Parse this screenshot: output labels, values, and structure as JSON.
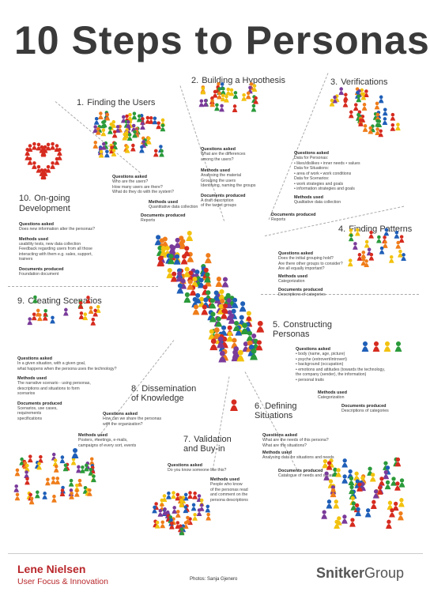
{
  "title": "10 Steps to Personas",
  "colors": {
    "red": "#d62b1f",
    "blue": "#1f5fb8",
    "green": "#2a9a3a",
    "yellow": "#f2c20f",
    "orange": "#ef7d1a",
    "purple": "#7a3b9a",
    "brand_red": "#b8262a"
  },
  "steps": [
    {
      "num": "1.",
      "name": "Finding the Users",
      "q_h": "Questions asked",
      "q": "Who are the users?\nHow many users are there?\nWhat do they do with the system?",
      "m_h": "Methods used",
      "m": "Quantitative data collection",
      "d_h": "Documents produced",
      "d": "Reports"
    },
    {
      "num": "2.",
      "name": "Building a Hypothesis",
      "q_h": "Questions asked",
      "q": "What are the differences\namong the users?",
      "m_h": "Methods used",
      "m": "Analysing the material\nGrouping the users\nIdentifying, naming the groups",
      "d_h": "Documents produced",
      "d": "A draft description\nof the target groups"
    },
    {
      "num": "3.",
      "name": "Verifications",
      "q_h": "Questions asked",
      "q": "Data for Personas:\n• likes/dislikes • inner needs • values\nData for Situations:\n• area of work • work conditions\nData for Scenarios:\n• work strategies and goals\n• information strategies and goals",
      "m_h": "Methods used",
      "m": "Qualitative data collection",
      "d_h": "Documents produced",
      "d": "Reports"
    },
    {
      "num": "4.",
      "name": "Finding Patterns",
      "q_h": "Questions asked",
      "q": "Does the initial grouping hold?\nAre there other groups to consider?\nAre all equally important?",
      "m_h": "Methods used",
      "m": "Categorization",
      "d_h": "Documents produced",
      "d": "Descriptions of categories"
    },
    {
      "num": "5.",
      "name": "Constructing\nPersonas",
      "q_h": "Questions asked",
      "q": "• body (name, age, picture)\n• psyche (extrovert/introvert)\n• background (occupation)\n• emotions and attitudes (towards the technology,\n   the company (sender), the information)\n• personal traits",
      "m_h": "Methods used",
      "m": "Categorization",
      "d_h": "Documents produced",
      "d": "Descriptions of categories"
    },
    {
      "num": "6.",
      "name": "Defining\nSituations",
      "q_h": "Questions asked",
      "q": "What are the needs of this persona?\nWhat are the situations?",
      "m_h": "Methods used",
      "m": "Analysing data for situations and needs",
      "d_h": "Documents produced",
      "d": "Catalogue of needs and situations"
    },
    {
      "num": "7.",
      "name": "Validation\nand Buy-in",
      "q_h": "Questions asked",
      "q": "Do you know someone like this?",
      "m_h": "Methods used",
      "m": "People who know\nof the personas read\nand comment on the\npersona descriptions",
      "d_h": "",
      "d": ""
    },
    {
      "num": "8.",
      "name": "Dissemination\nof Knowledge",
      "q_h": "Questions asked",
      "q": "How can we share the personas\nwith the organization?",
      "m_h": "Methods used",
      "m": "Posters, meetings, e-mails,\ncampaigns of every sort, events",
      "d_h": "",
      "d": ""
    },
    {
      "num": "9.",
      "name": "Creating Scenarios",
      "q_h": "Questions asked",
      "q": "In a given situation, with a given goal,\nwhat happens when the persona  uses the technology?",
      "m_h": "Methods used",
      "m": "The narrative scenario - using personas,\ndescriptions and situations to form\nscenarios",
      "d_h": "Documents produced",
      "d": "Scenarios, use cases,\nrequirements\nspecifications"
    },
    {
      "num": "10.",
      "name": "On-going\nDevelopment",
      "q_h": "Questions asked",
      "q": "Does new information alter the personas?",
      "m_h": "Methods used",
      "m": "usability tests, new data collection\nFeedback regarding users from all those\ninteracting with them e.g. sales, support,\ntrainers",
      "d_h": "Documents produced",
      "d": "Foundation document"
    }
  ],
  "footer": {
    "name": "Lene Nielsen",
    "subtitle": "User Focus & Innovation",
    "photos": "Photos: Sanja Gjenero",
    "brand_a": "Snitker",
    "brand_b": "Group"
  }
}
